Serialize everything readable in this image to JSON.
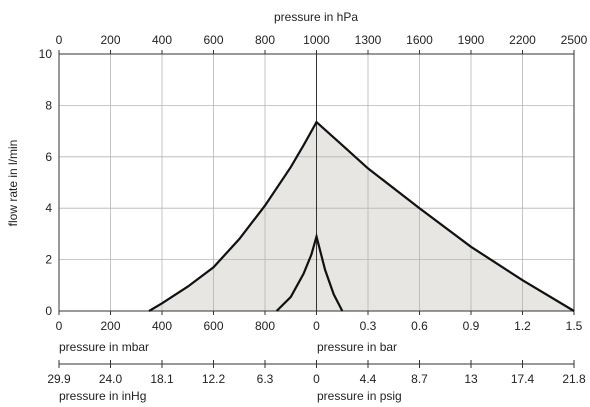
{
  "chart_data": {
    "type": "area",
    "title": "",
    "ylabel": "flow rate in l/min",
    "ylim": [
      0,
      10
    ],
    "yticks": [
      "0",
      "2",
      "4",
      "6",
      "8",
      "10"
    ],
    "grid": true,
    "axes": {
      "top": {
        "label": "pressure in hPa",
        "ticks": [
          "0",
          "200",
          "400",
          "600",
          "800",
          "1000",
          "1300",
          "1600",
          "1900",
          "2200",
          "2500"
        ]
      },
      "bottom_vacuum": {
        "label": "pressure in mbar",
        "ticks": [
          "0",
          "200",
          "400",
          "600",
          "800",
          "0"
        ]
      },
      "bottom_pressure": {
        "label": "pressure in bar",
        "ticks": [
          "0.3",
          "0.6",
          "0.9",
          "1.2",
          "1.5"
        ]
      },
      "inhg": {
        "label": "pressure in inHg",
        "ticks": [
          "29.9",
          "24.0",
          "18.1",
          "12.2",
          "6.3",
          "0"
        ]
      },
      "psig": {
        "label": "pressure in psig",
        "ticks": [
          "4.4",
          "8.7",
          "13",
          "17.4",
          "21.8"
        ]
      }
    },
    "series": [
      {
        "x_unit": "hPa",
        "x": [
          350,
          400,
          500,
          600,
          700,
          800,
          900,
          950,
          1000,
          1150,
          1300,
          1600,
          1900,
          2200,
          2500
        ],
        "y": [
          0,
          0.3,
          0.95,
          1.7,
          2.8,
          4.1,
          5.6,
          6.45,
          7.35,
          6.45,
          5.55,
          4.0,
          2.5,
          1.2,
          0
        ]
      },
      {
        "x_unit": "hPa",
        "x": [
          845,
          900,
          950,
          980,
          1000,
          1050,
          1100,
          1150
        ],
        "y": [
          0,
          0.55,
          1.45,
          2.2,
          2.9,
          1.6,
          0.65,
          0
        ]
      }
    ]
  }
}
